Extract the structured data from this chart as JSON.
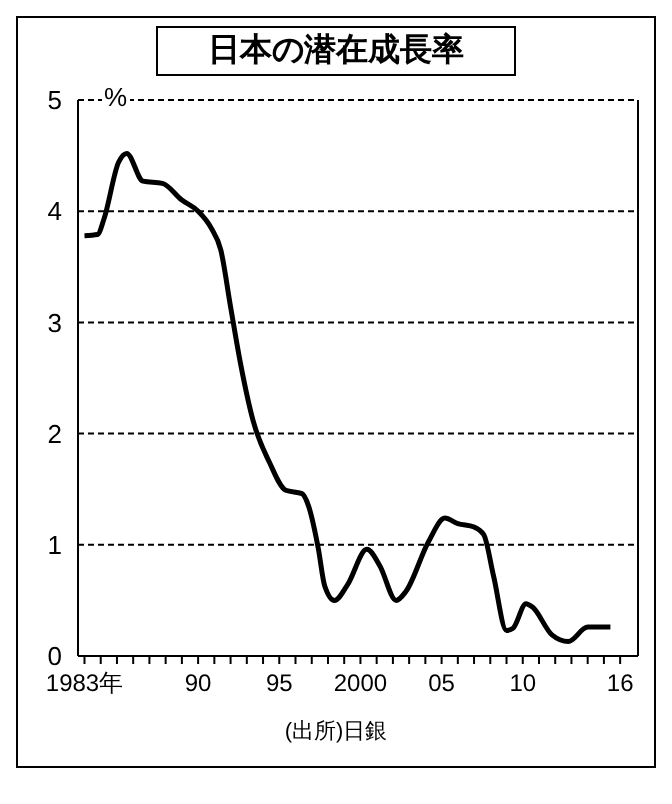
{
  "chart_data": {
    "type": "line",
    "title": "日本の潜在成長率",
    "ylabel": "%",
    "x": [
      1983.0,
      1983.8,
      1984.2,
      1985.1,
      1985.6,
      1986.6,
      1987.8,
      1989.0,
      1990.0,
      1990.8,
      1991.4,
      1992.0,
      1992.6,
      1993.4,
      1994.4,
      1995.4,
      1996.4,
      1996.8,
      1997.4,
      1997.8,
      1998.4,
      1999.2,
      2000.4,
      2001.2,
      2002.2,
      2002.8,
      2004.2,
      2005.2,
      2006.0,
      2007.0,
      2007.6,
      2008.2,
      2009.0,
      2009.4,
      2010.2,
      2010.6,
      2011.8,
      2012.8,
      2014.0,
      2015.4
    ],
    "series": [
      {
        "color": "#000000",
        "values": [
          3.78,
          3.79,
          3.93,
          4.44,
          4.52,
          4.27,
          4.25,
          4.1,
          4.0,
          3.85,
          3.65,
          3.14,
          2.64,
          2.11,
          1.74,
          1.49,
          1.46,
          1.35,
          0.97,
          0.63,
          0.5,
          0.64,
          0.96,
          0.81,
          0.5,
          0.58,
          1.03,
          1.24,
          1.19,
          1.16,
          1.09,
          0.72,
          0.23,
          0.25,
          0.47,
          0.44,
          0.19,
          0.13,
          0.26,
          0.26
        ]
      }
    ],
    "xlim": [
      1982.6,
      2017.1
    ],
    "xticks": [
      {
        "value": 1983,
        "label": "1983年"
      },
      {
        "value": 1984,
        "label": null
      },
      {
        "value": 1985,
        "label": null
      },
      {
        "value": 1986,
        "label": null
      },
      {
        "value": 1987,
        "label": null
      },
      {
        "value": 1988,
        "label": null
      },
      {
        "value": 1989,
        "label": null
      },
      {
        "value": 1990,
        "label": "90"
      },
      {
        "value": 1991,
        "label": null
      },
      {
        "value": 1992,
        "label": null
      },
      {
        "value": 1993,
        "label": null
      },
      {
        "value": 1994,
        "label": null
      },
      {
        "value": 1995,
        "label": "95"
      },
      {
        "value": 1996,
        "label": null
      },
      {
        "value": 1997,
        "label": null
      },
      {
        "value": 1998,
        "label": null
      },
      {
        "value": 1999,
        "label": null
      },
      {
        "value": 2000,
        "label": "2000"
      },
      {
        "value": 2001,
        "label": null
      },
      {
        "value": 2002,
        "label": null
      },
      {
        "value": 2003,
        "label": null
      },
      {
        "value": 2004,
        "label": null
      },
      {
        "value": 2005,
        "label": "05"
      },
      {
        "value": 2006,
        "label": null
      },
      {
        "value": 2007,
        "label": null
      },
      {
        "value": 2008,
        "label": null
      },
      {
        "value": 2009,
        "label": null
      },
      {
        "value": 2010,
        "label": "10"
      },
      {
        "value": 2011,
        "label": null
      },
      {
        "value": 2012,
        "label": null
      },
      {
        "value": 2013,
        "label": null
      },
      {
        "value": 2014,
        "label": null
      },
      {
        "value": 2015,
        "label": null
      },
      {
        "value": 2016,
        "label": "16"
      }
    ],
    "ylim": [
      0,
      5
    ],
    "yticks": [
      0,
      1,
      2,
      3,
      4,
      5
    ],
    "grid": "y",
    "marker": "none",
    "line_style": "solid",
    "legend": false,
    "annotations": [
      "(出所)日銀"
    ]
  }
}
